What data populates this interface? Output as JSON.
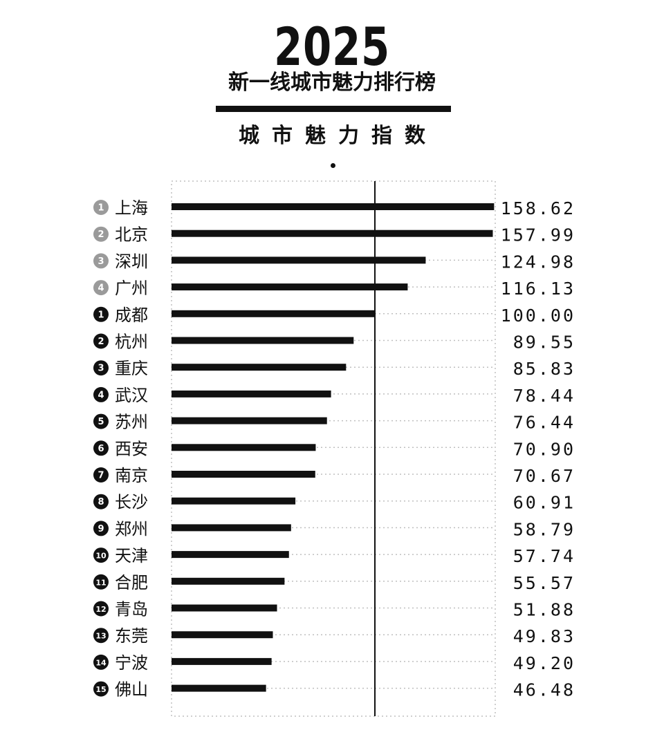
{
  "header": {
    "year": "2025",
    "subtitle": "新一线城市魅力排行榜",
    "axis_title": "城市魅力指数"
  },
  "colors": {
    "bar": "#111111",
    "badge_top": "#9a9a9a",
    "badge_new": "#111111",
    "grid": "#bfbfbf"
  },
  "chart_data": {
    "type": "bar",
    "orientation": "horizontal",
    "reference_value": 100,
    "xlim": [
      0,
      160
    ],
    "grid": "dotted",
    "categories": [
      "上海",
      "北京",
      "深圳",
      "广州",
      "成都",
      "杭州",
      "重庆",
      "武汉",
      "苏州",
      "西安",
      "南京",
      "长沙",
      "郑州",
      "天津",
      "合肥",
      "青岛",
      "东莞",
      "宁波",
      "佛山"
    ],
    "ranks": [
      "1",
      "2",
      "3",
      "4",
      "1",
      "2",
      "3",
      "4",
      "5",
      "6",
      "7",
      "8",
      "9",
      "10",
      "11",
      "12",
      "13",
      "14",
      "15"
    ],
    "rank_group": [
      "top",
      "top",
      "top",
      "top",
      "new",
      "new",
      "new",
      "new",
      "new",
      "new",
      "new",
      "new",
      "new",
      "new",
      "new",
      "new",
      "new",
      "new",
      "new"
    ],
    "values": [
      158.62,
      157.99,
      124.98,
      116.13,
      100.0,
      89.55,
      85.83,
      78.44,
      76.44,
      70.9,
      70.67,
      60.91,
      58.79,
      57.74,
      55.57,
      51.88,
      49.83,
      49.2,
      46.48
    ],
    "value_labels": [
      "158.62",
      "157.99",
      "124.98",
      "116.13",
      "100.00",
      "89.55",
      "85.83",
      "78.44",
      "76.44",
      "70.90",
      "70.67",
      "60.91",
      "58.79",
      "57.74",
      "55.57",
      "51.88",
      "49.83",
      "49.20",
      "46.48"
    ]
  }
}
